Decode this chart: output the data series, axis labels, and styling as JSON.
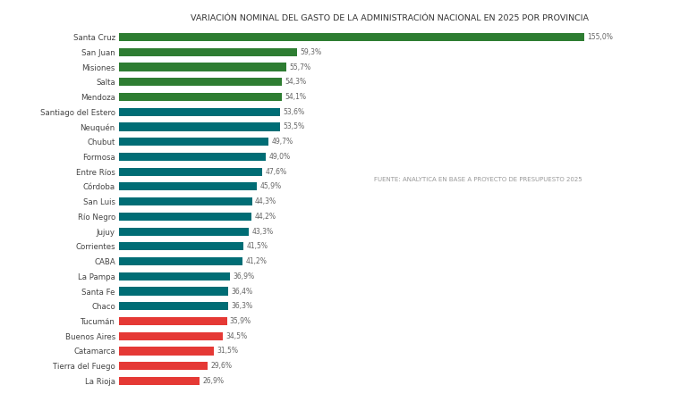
{
  "title": "VARIACIÓN NOMINAL DEL GASTO DE LA ADMINISTRACIÓN NACIONAL EN 2025 POR PROVINCIA",
  "source_text": "FUENTE: ANALYTICA EN BASE A PROYECTO DE PRESUPUESTO 2025",
  "categories": [
    "Santa Cruz",
    "San Juan",
    "Misiones",
    "Salta",
    "Mendoza",
    "Santiago del Estero",
    "Neuquén",
    "Chubut",
    "Formosa",
    "Entre Ríos",
    "Córdoba",
    "San Luis",
    "Río Negro",
    "Jujuy",
    "Corrientes",
    "CABA",
    "La Pampa",
    "Santa Fe",
    "Chaco",
    "Tucumán",
    "Buenos Aires",
    "Catamarca",
    "Tierra del Fuego",
    "La Rioja"
  ],
  "values": [
    155.0,
    59.3,
    55.7,
    54.3,
    54.1,
    53.6,
    53.5,
    49.7,
    49.0,
    47.6,
    45.9,
    44.3,
    44.2,
    43.3,
    41.5,
    41.2,
    36.9,
    36.4,
    36.3,
    35.9,
    34.5,
    31.5,
    29.6,
    26.9
  ],
  "colors": [
    "#2e7d32",
    "#2e7d32",
    "#2e7d32",
    "#2e7d32",
    "#2e7d32",
    "#006d75",
    "#006d75",
    "#006d75",
    "#006d75",
    "#006d75",
    "#006d75",
    "#006d75",
    "#006d75",
    "#006d75",
    "#006d75",
    "#006d75",
    "#006d75",
    "#006d75",
    "#006d75",
    "#e53935",
    "#e53935",
    "#e53935",
    "#e53935",
    "#e53935"
  ],
  "background_color": "#ffffff",
  "title_fontsize": 6.8,
  "label_fontsize": 6.2,
  "value_fontsize": 5.5,
  "source_fontsize": 5.0,
  "bar_height": 0.55
}
